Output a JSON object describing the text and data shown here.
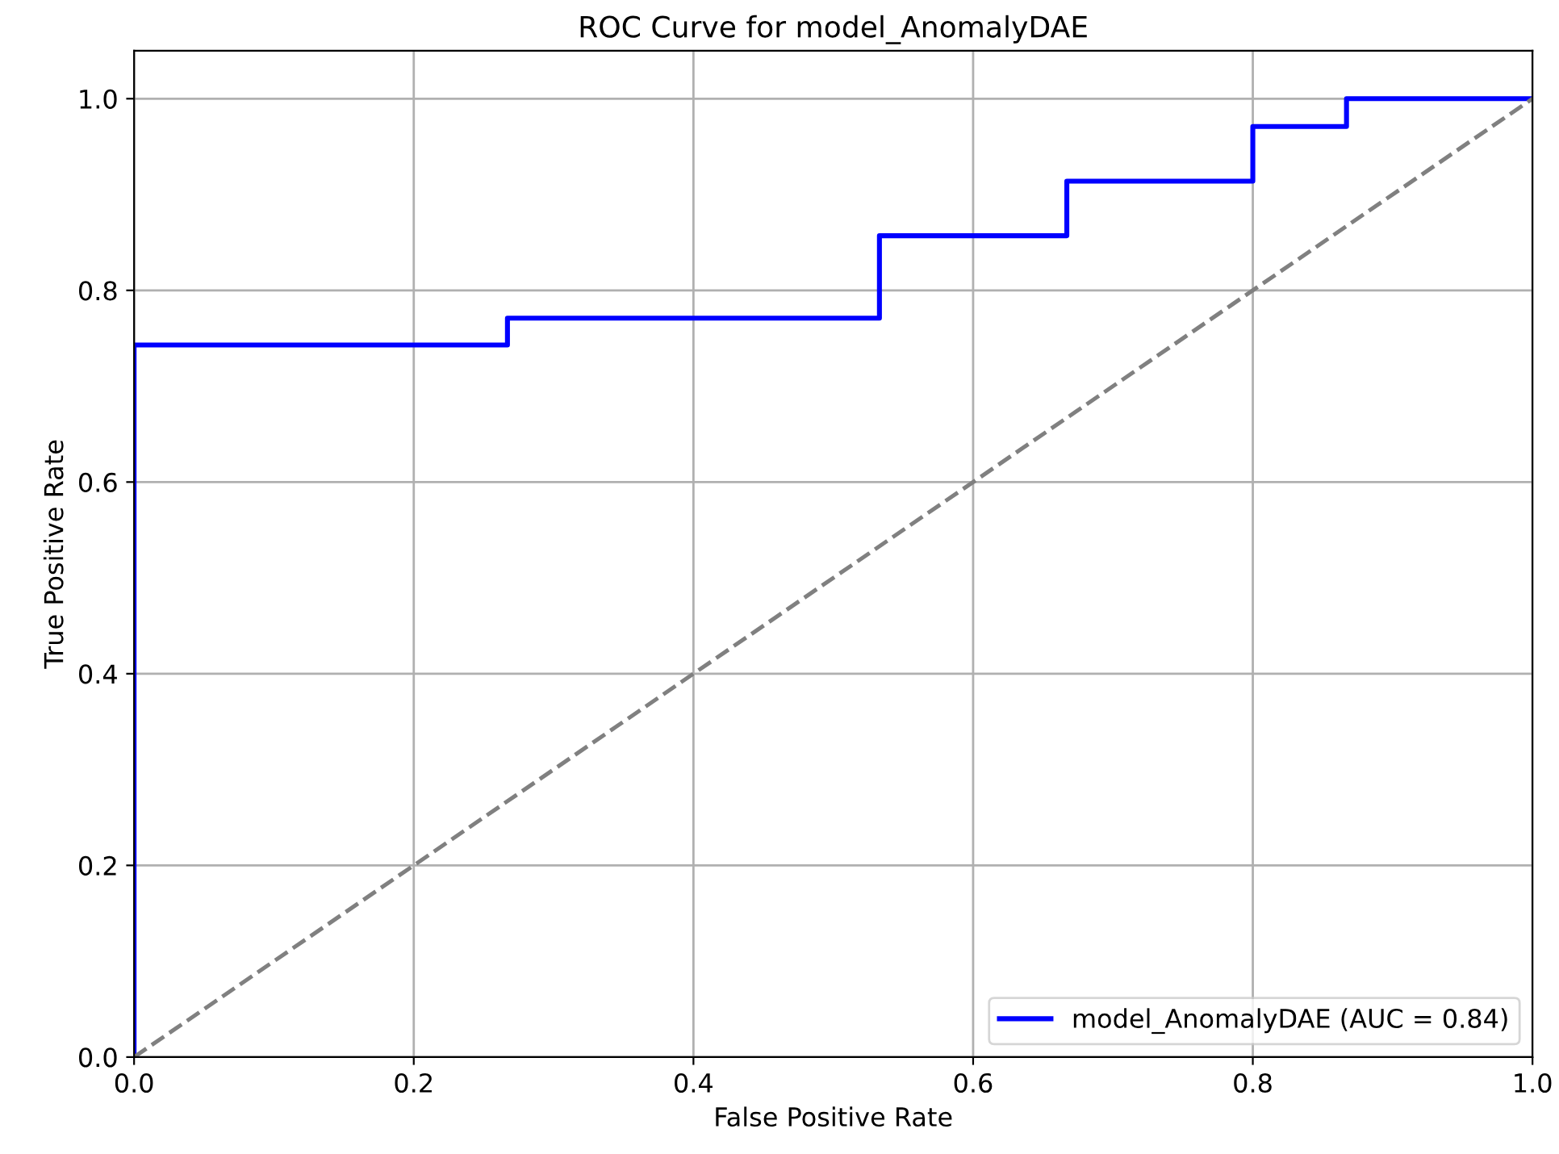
{
  "chart_data": {
    "type": "line",
    "title": "ROC Curve for model_AnomalyDAE",
    "xlabel": "False Positive Rate",
    "ylabel": "True Positive Rate",
    "series": [
      {
        "name": "model_AnomalyDAE (AUC = 0.84)",
        "color": "#0000ff",
        "line_style": "solid",
        "x": [
          0,
          0,
          0.267,
          0.267,
          0.533,
          0.533,
          0.667,
          0.667,
          0.8,
          0.8,
          0.867,
          0.867,
          1.0
        ],
        "values": [
          0,
          0.743,
          0.743,
          0.771,
          0.771,
          0.857,
          0.857,
          0.914,
          0.914,
          0.971,
          0.971,
          1.0,
          1.0
        ]
      },
      {
        "color": "#808080",
        "line_style": "dashed",
        "x": [
          0,
          1
        ],
        "values": [
          0,
          1
        ]
      }
    ],
    "xlim": [
      0,
      1
    ],
    "ylim": [
      0,
      1.05
    ],
    "xticks": [
      {
        "value": 0,
        "label": "0.0"
      },
      {
        "value": 0.2,
        "label": "0.2"
      },
      {
        "value": 0.4,
        "label": "0.4"
      },
      {
        "value": 0.6,
        "label": "0.6"
      },
      {
        "value": 0.8,
        "label": "0.8"
      },
      {
        "value": 1,
        "label": "1.0"
      }
    ],
    "yticks": [
      {
        "value": 0,
        "label": "0.0"
      },
      {
        "value": 0.2,
        "label": "0.2"
      },
      {
        "value": 0.4,
        "label": "0.4"
      },
      {
        "value": 0.6,
        "label": "0.6"
      },
      {
        "value": 0.8,
        "label": "0.8"
      },
      {
        "value": 1,
        "label": "1.0"
      }
    ],
    "grid": true,
    "legend": "lower right"
  }
}
